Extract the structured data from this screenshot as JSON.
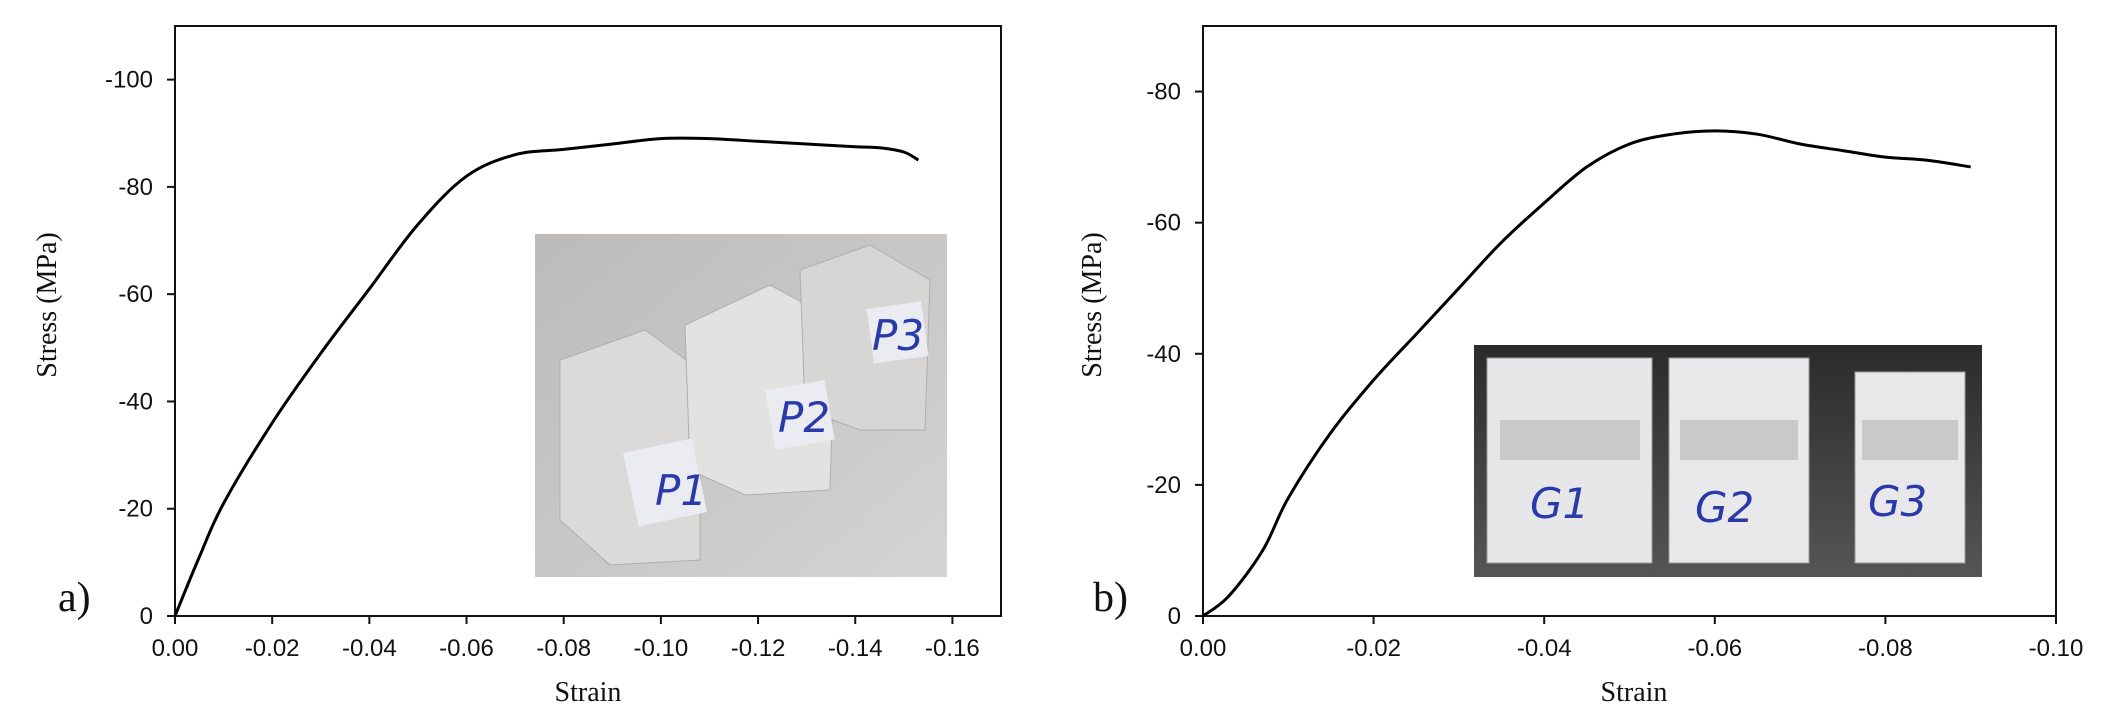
{
  "chart_data": [
    {
      "type": "line",
      "panel_label": "a)",
      "xlabel": "Strain",
      "ylabel": "Stress (MPa)",
      "xlim": [
        0.0,
        -0.17
      ],
      "ylim": [
        0,
        -110
      ],
      "xticks": [
        0.0,
        -0.02,
        -0.04,
        -0.06,
        -0.08,
        -0.1,
        -0.12,
        -0.14,
        -0.16
      ],
      "xtick_labels": [
        "0.00",
        "-0.02",
        "-0.04",
        "-0.06",
        "-0.08",
        "-0.10",
        "-0.12",
        "-0.14",
        "-0.16"
      ],
      "yticks": [
        0,
        -20,
        -40,
        -60,
        -80,
        -100
      ],
      "ytick_labels": [
        "0",
        "-20",
        "-40",
        "-60",
        "-80",
        "-100"
      ],
      "grid": false,
      "series": [
        {
          "x": [
            0.0,
            -0.005,
            -0.01,
            -0.02,
            -0.03,
            -0.04,
            -0.05,
            -0.06,
            -0.07,
            -0.08,
            -0.09,
            -0.1,
            -0.11,
            -0.12,
            -0.13,
            -0.14,
            -0.145,
            -0.15,
            -0.153
          ],
          "y": [
            0,
            -11,
            -21,
            -36,
            -49,
            -61,
            -73,
            -82,
            -86,
            -87,
            -88,
            -89,
            -89,
            -88.5,
            -88,
            -87.5,
            -87.3,
            -86.5,
            -85
          ]
        }
      ],
      "inset_photo": {
        "specimen_labels": [
          "P1",
          "P2",
          "P3"
        ],
        "description_color": "#c8c6c4"
      }
    },
    {
      "type": "line",
      "panel_label": "b)",
      "xlabel": "Strain",
      "ylabel": "Stress (MPa)",
      "xlim": [
        0.0,
        -0.1
      ],
      "ylim": [
        0,
        -90
      ],
      "xticks": [
        0.0,
        -0.02,
        -0.04,
        -0.06,
        -0.08,
        -0.1
      ],
      "xtick_labels": [
        "0.00",
        "-0.02",
        "-0.04",
        "-0.06",
        "-0.08",
        "-0.10"
      ],
      "yticks": [
        0,
        -20,
        -40,
        -60,
        -80
      ],
      "ytick_labels": [
        "0",
        "-20",
        "-40",
        "-60",
        "-80"
      ],
      "grid": false,
      "series": [
        {
          "x": [
            0.0,
            -0.003,
            -0.007,
            -0.01,
            -0.015,
            -0.02,
            -0.025,
            -0.03,
            -0.035,
            -0.04,
            -0.045,
            -0.05,
            -0.055,
            -0.06,
            -0.065,
            -0.07,
            -0.075,
            -0.08,
            -0.085,
            -0.09
          ],
          "y": [
            0,
            -3,
            -10,
            -18,
            -28,
            -36,
            -43,
            -50,
            -57,
            -63,
            -68.5,
            -72,
            -73.5,
            -74,
            -73.5,
            -72,
            -71,
            -70,
            -69.5,
            -68.5
          ]
        }
      ],
      "inset_photo": {
        "specimen_labels": [
          "G1",
          "G2",
          "G3"
        ],
        "description_color": "#3f3f3f"
      }
    }
  ]
}
